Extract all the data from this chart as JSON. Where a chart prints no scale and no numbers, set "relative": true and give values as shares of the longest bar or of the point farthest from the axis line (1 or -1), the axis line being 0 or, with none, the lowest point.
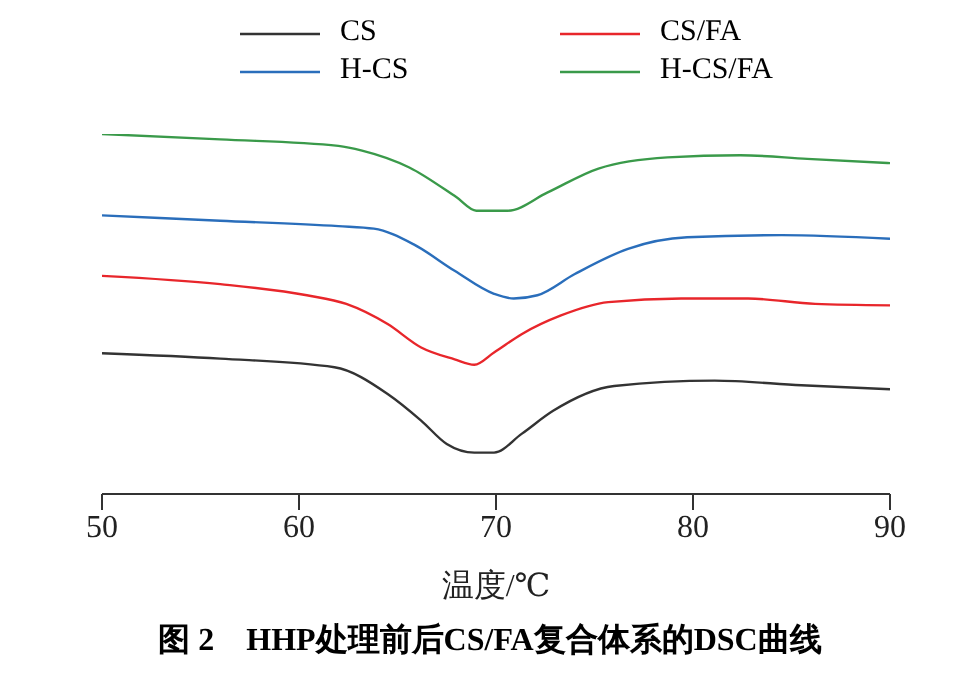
{
  "chart_data": {
    "type": "line",
    "title": "图 2　HHP处理前后CS/FA复合体系的DSC曲线",
    "xlabel": "温度/℃",
    "relative": true,
    "xlim": [
      50,
      90
    ],
    "xticks": [
      50,
      60,
      70,
      80,
      90
    ],
    "grid": false,
    "legend": "top",
    "marker": "none",
    "line_style": "solid",
    "series": [
      {
        "name": "CS",
        "color": "#333333",
        "x": [
          50,
          56,
          61.8,
          64.5,
          66.2,
          67.5,
          68.9,
          69.9,
          71.3,
          72.9,
          76,
          81.1,
          85.5,
          90
        ],
        "values": [
          0.391,
          0.376,
          0.352,
          0.278,
          0.204,
          0.139,
          0.115,
          0.115,
          0.167,
          0.231,
          0.3,
          0.315,
          0.302,
          0.291
        ]
      },
      {
        "name": "CS/FA",
        "color": "#e8262b",
        "x": [
          50,
          56,
          60.4,
          62.4,
          64.5,
          66.2,
          67.9,
          68.9,
          69.9,
          71.3,
          73.3,
          75.7,
          79.4,
          82.8,
          86.2,
          90
        ],
        "values": [
          0.606,
          0.583,
          0.552,
          0.528,
          0.472,
          0.407,
          0.374,
          0.359,
          0.393,
          0.444,
          0.496,
          0.533,
          0.543,
          0.543,
          0.528,
          0.524
        ]
      },
      {
        "name": "H-CS",
        "color": "#2a6ebb",
        "x": [
          50,
          56,
          62,
          63.8,
          65.8,
          67.9,
          69.9,
          70.9,
          72.1,
          74,
          76.7,
          79.7,
          84.5,
          90
        ],
        "values": [
          0.774,
          0.759,
          0.744,
          0.737,
          0.694,
          0.62,
          0.556,
          0.543,
          0.552,
          0.611,
          0.681,
          0.713,
          0.719,
          0.709
        ]
      },
      {
        "name": "H-CS/FA",
        "color": "#3a9a4a",
        "x": [
          50,
          56,
          62,
          63.2,
          65.6,
          68,
          69,
          70.6,
          72.6,
          75.2,
          78.7,
          82.4,
          85.8,
          90
        ],
        "values": [
          1,
          0.985,
          0.967,
          0.954,
          0.907,
          0.824,
          0.787,
          0.787,
          0.837,
          0.904,
          0.935,
          0.941,
          0.931,
          0.919
        ]
      }
    ]
  }
}
